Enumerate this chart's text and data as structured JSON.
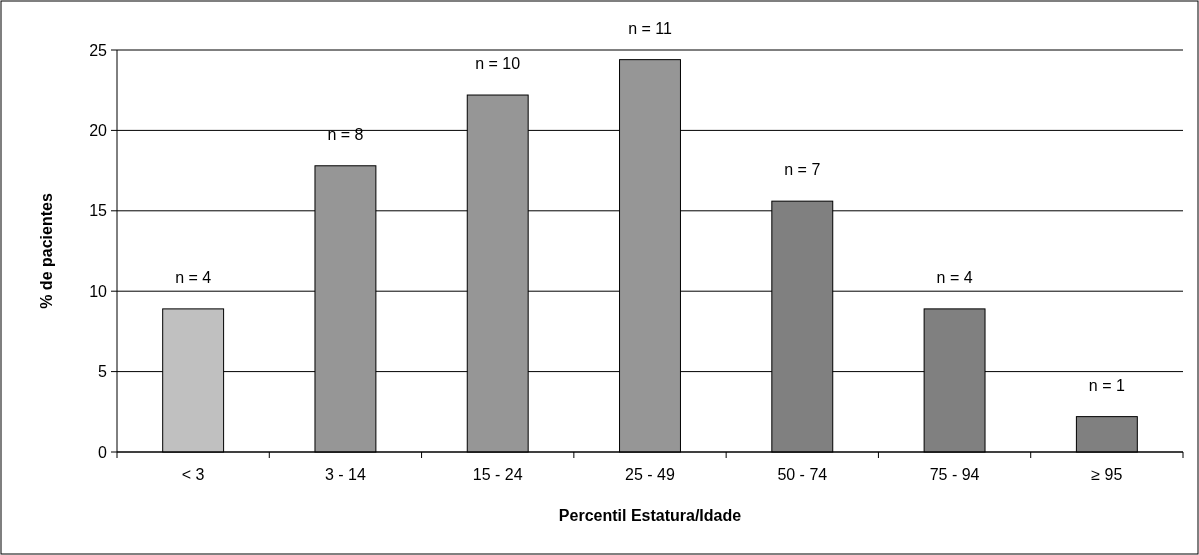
{
  "chart_data": {
    "type": "bar",
    "xlabel": "Percentil Estatura/Idade",
    "ylabel": "% de pacientes",
    "categories": [
      "< 3",
      "3 - 14",
      "15 - 24",
      "25 - 49",
      "50 - 74",
      "75 - 94",
      "≥ 95"
    ],
    "values": [
      8.9,
      17.8,
      22.2,
      24.4,
      15.6,
      8.9,
      2.2
    ],
    "colors": [
      "#c0c0c0",
      "#969696",
      "#969696",
      "#969696",
      "#808080",
      "#808080",
      "#808080"
    ],
    "annotations": [
      {
        "text": "n = 4",
        "x": "< 3",
        "y": 8.9
      },
      {
        "text": "n = 8",
        "x": "3 - 14",
        "y": 17.8
      },
      {
        "text": "n = 10",
        "x": "15 - 24",
        "y": 22.2
      },
      {
        "text": "n = 11",
        "x": "25 - 49",
        "y": 24.4
      },
      {
        "text": "n = 7",
        "x": "50 - 74",
        "y": 15.6
      },
      {
        "text": "n = 4",
        "x": "75 - 94",
        "y": 8.9
      },
      {
        "text": "n = 1",
        "x": "≥ 95",
        "y": 2.2
      }
    ],
    "ylim": [
      0,
      25
    ],
    "yticks": [
      0,
      5,
      10,
      15,
      20,
      25
    ],
    "grid": "y"
  }
}
